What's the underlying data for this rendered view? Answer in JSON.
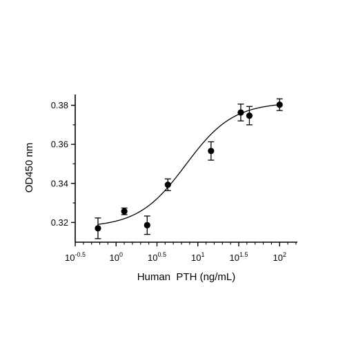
{
  "chart_data": {
    "type": "scatter",
    "xlabel": "Human  PTH (ng/mL)",
    "ylabel": "OD450 nm",
    "x_scale": "log10",
    "xlim": [
      0.3162,
      165
    ],
    "ylim": [
      0.3099,
      0.3855
    ],
    "x_ticks": [
      {
        "value": 0.3162,
        "base": "10",
        "exp": "-0.5"
      },
      {
        "value": 1,
        "base": "10",
        "exp": "0"
      },
      {
        "value": 3.1623,
        "base": "10",
        "exp": "0.5"
      },
      {
        "value": 10,
        "base": "10",
        "exp": "1"
      },
      {
        "value": 31.623,
        "base": "10",
        "exp": "1.5"
      },
      {
        "value": 100,
        "base": "10",
        "exp": "2"
      }
    ],
    "y_ticks": [
      "0.32",
      "0.34",
      "0.36",
      "0.38"
    ],
    "grid": false,
    "series": [
      {
        "x": [
          0.6,
          2.4,
          1.26,
          4.3,
          14.5,
          42.7,
          33.5,
          100
        ],
        "y": [
          0.317,
          0.3186,
          0.3257,
          0.3393,
          0.3566,
          0.3747,
          0.3763,
          0.3803
        ],
        "error": [
          0.0053,
          0.0047,
          0.0017,
          0.003,
          0.0047,
          0.0047,
          0.0043,
          0.003
        ]
      }
    ],
    "fit_curve": {
      "model": "4PL",
      "bottom": 0.3175,
      "top": 0.3815,
      "ec50": 7.1,
      "hill": 1.5
    }
  }
}
